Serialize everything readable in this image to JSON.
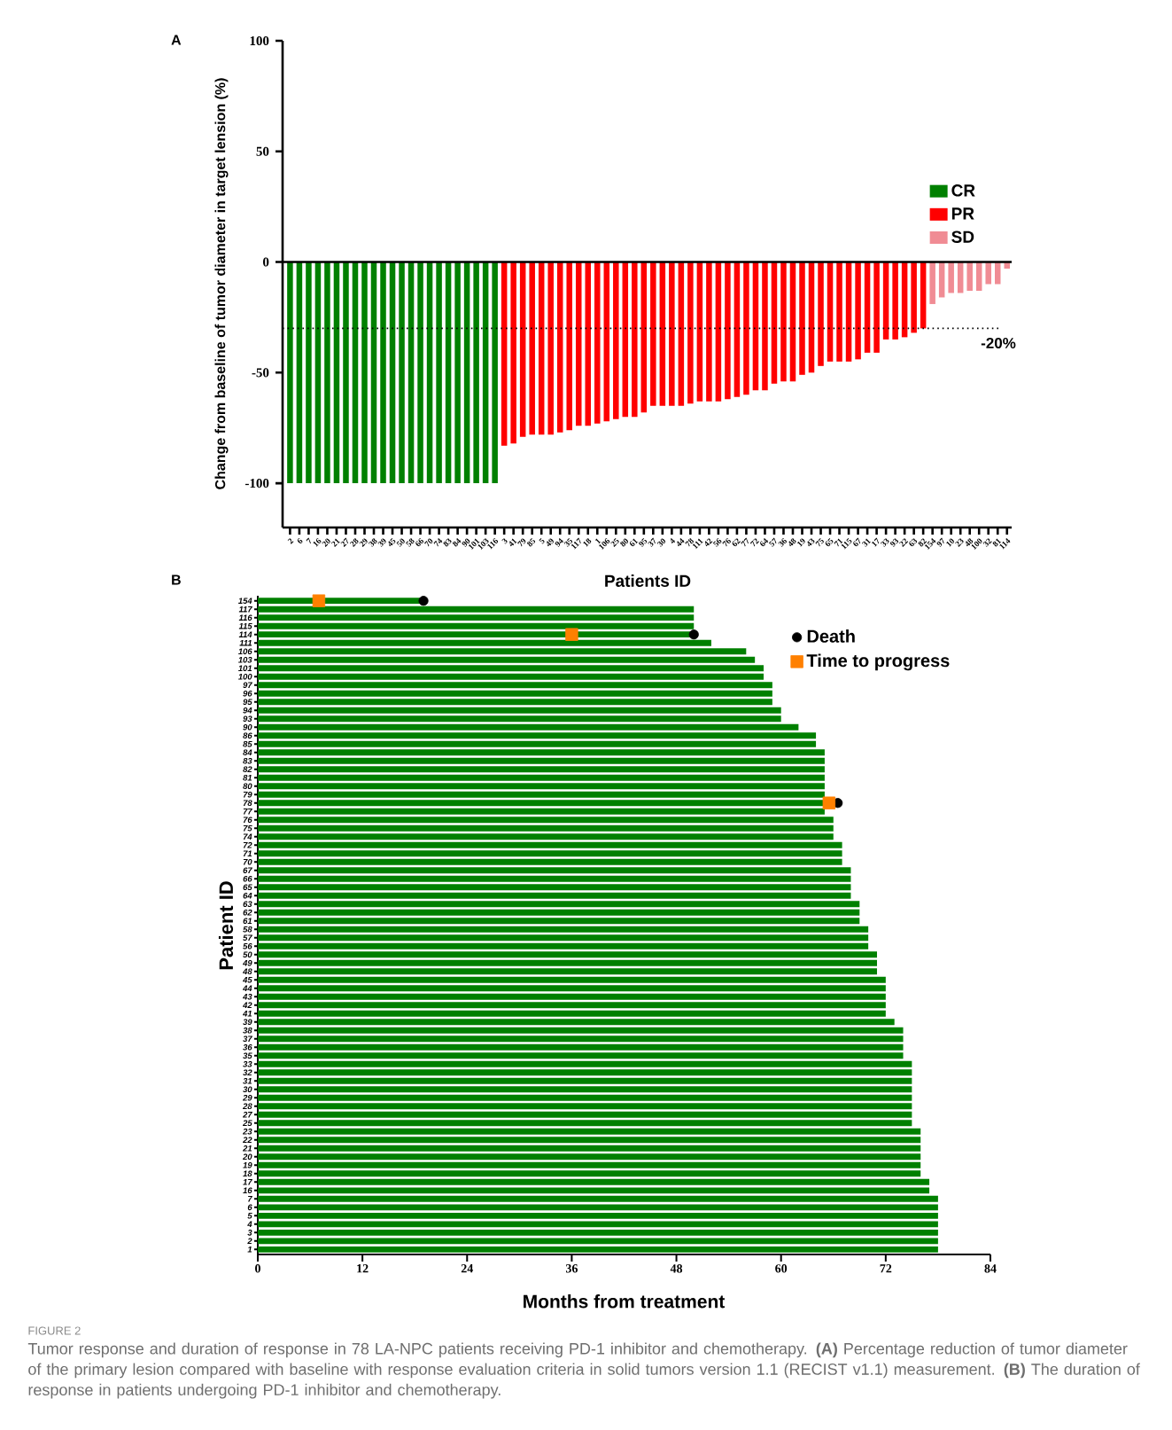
{
  "chart_data": [
    {
      "type": "bar",
      "title": "A",
      "xlabel": "Patients ID",
      "ylabel": "Change from baseline of tumor diameter in target lension (%)",
      "categories": [
        "2",
        "6",
        "7",
        "16",
        "20",
        "21",
        "27",
        "28",
        "29",
        "38",
        "39",
        "45",
        "50",
        "58",
        "66",
        "70",
        "74",
        "83",
        "84",
        "90",
        "101",
        "103",
        "116",
        "3",
        "41",
        "79",
        "85",
        "5",
        "49",
        "94",
        "35",
        "117",
        "18",
        "1",
        "106",
        "25",
        "80",
        "61",
        "95",
        "37",
        "30",
        "4",
        "44",
        "78",
        "111",
        "42",
        "56",
        "76",
        "62",
        "77",
        "72",
        "64",
        "57",
        "36",
        "48",
        "19",
        "43",
        "75",
        "65",
        "71",
        "115",
        "67",
        "31",
        "17",
        "33",
        "93",
        "22",
        "63",
        "82",
        "154",
        "97",
        "10",
        "23",
        "48",
        "100",
        "32",
        "81",
        "114"
      ],
      "series": [
        {
          "name": "CR",
          "color": "#008000",
          "values": [
            -100,
            -100,
            -100,
            -100,
            -100,
            -100,
            -100,
            -100,
            -100,
            -100,
            -100,
            -100,
            -100,
            -100,
            -100,
            -100,
            -100,
            -100,
            -100,
            -100,
            -100,
            -100,
            -100,
            null,
            null,
            null,
            null,
            null,
            null,
            null,
            null,
            null,
            null,
            null,
            null,
            null,
            null,
            null,
            null,
            null,
            null,
            null,
            null,
            null,
            null,
            null,
            null,
            null,
            null,
            null,
            null,
            null,
            null,
            null,
            null,
            null,
            null,
            null,
            null,
            null,
            null,
            null,
            null,
            null,
            null,
            null,
            null,
            null,
            null,
            null,
            null,
            null,
            null,
            null,
            null,
            null,
            null,
            null
          ]
        },
        {
          "name": "PR",
          "color": "#ff0000",
          "values": [
            null,
            null,
            null,
            null,
            null,
            null,
            null,
            null,
            null,
            null,
            null,
            null,
            null,
            null,
            null,
            null,
            null,
            null,
            null,
            null,
            null,
            null,
            null,
            -83,
            -82,
            -79,
            -78,
            -78,
            -78,
            -77,
            -76,
            -74,
            -74,
            -73,
            -72,
            -71,
            -70,
            -70,
            -68,
            -65,
            -65,
            -65,
            -65,
            -64,
            -63,
            -63,
            -63,
            -62,
            -61,
            -60,
            -58,
            -58,
            -55,
            -54,
            -54,
            -51,
            -50,
            -47,
            -45,
            -45,
            -45,
            -44,
            -41,
            -41,
            -35,
            -35,
            -34,
            -32,
            -30,
            null,
            null,
            null,
            null,
            null,
            null,
            null,
            null,
            null
          ]
        },
        {
          "name": "SD",
          "color": "#f08c94",
          "values": [
            null,
            null,
            null,
            null,
            null,
            null,
            null,
            null,
            null,
            null,
            null,
            null,
            null,
            null,
            null,
            null,
            null,
            null,
            null,
            null,
            null,
            null,
            null,
            null,
            null,
            null,
            null,
            null,
            null,
            null,
            null,
            null,
            null,
            null,
            null,
            null,
            null,
            null,
            null,
            null,
            null,
            null,
            null,
            null,
            null,
            null,
            null,
            null,
            null,
            null,
            null,
            null,
            null,
            null,
            null,
            null,
            null,
            null,
            null,
            null,
            null,
            null,
            null,
            null,
            null,
            null,
            null,
            null,
            null,
            -19,
            -16,
            -14,
            -14,
            -13,
            -13,
            -10,
            -10,
            -3
          ]
        }
      ],
      "ylim": [
        -120,
        100
      ],
      "yticks": [
        -100,
        -50,
        0,
        50,
        100
      ],
      "legend": "top right",
      "ref_lines": [
        {
          "axis": "y",
          "value": 0,
          "color": "#000000",
          "line_style": "solid"
        },
        {
          "axis": "y",
          "value": -30,
          "color": "#000000",
          "line_style": "dotted"
        }
      ],
      "annotations": [
        "-20%"
      ]
    },
    {
      "type": "bar",
      "orientation": "horizontal",
      "title": "B",
      "xlabel": "Months from treatment",
      "ylabel": "Patient ID",
      "categories": [
        "154",
        "117",
        "116",
        "115",
        "114",
        "111",
        "106",
        "103",
        "101",
        "100",
        "97",
        "96",
        "95",
        "94",
        "93",
        "90",
        "86",
        "85",
        "84",
        "83",
        "82",
        "81",
        "80",
        "79",
        "78",
        "77",
        "76",
        "75",
        "74",
        "72",
        "71",
        "70",
        "67",
        "66",
        "65",
        "64",
        "63",
        "62",
        "61",
        "58",
        "57",
        "56",
        "50",
        "49",
        "48",
        "45",
        "44",
        "43",
        "42",
        "41",
        "39",
        "38",
        "37",
        "36",
        "35",
        "33",
        "32",
        "31",
        "30",
        "29",
        "28",
        "27",
        "25",
        "23",
        "22",
        "21",
        "20",
        "19",
        "18",
        "17",
        "16",
        "7",
        "6",
        "5",
        "4",
        "3",
        "2",
        "1"
      ],
      "series": [
        {
          "color": "#008000",
          "values": [
            19,
            50,
            50,
            50,
            50,
            52,
            56,
            57,
            58,
            58,
            59,
            59,
            59,
            60,
            60,
            62,
            64,
            64,
            65,
            65,
            65,
            65,
            65,
            65,
            65,
            65,
            66,
            66,
            66,
            67,
            67,
            67,
            68,
            68,
            68,
            68,
            69,
            69,
            69,
            70,
            70,
            70,
            71,
            71,
            71,
            72,
            72,
            72,
            72,
            72,
            73,
            74,
            74,
            74,
            74,
            75,
            75,
            75,
            75,
            75,
            75,
            75,
            75,
            76,
            76,
            76,
            76,
            76,
            76,
            77,
            77,
            78,
            78,
            78,
            78,
            78,
            78,
            78
          ]
        },
        {
          "name": "Death",
          "type": "scatter",
          "marker": "circle",
          "color": "#000000",
          "x": [
            "154",
            "114",
            "78"
          ],
          "values": [
            19,
            50,
            66.5
          ]
        },
        {
          "name": "Time to progress",
          "type": "scatter",
          "marker": "square",
          "color": "#ff8000",
          "x": [
            "154",
            "114",
            "78"
          ],
          "values": [
            7,
            36,
            65.5
          ]
        }
      ],
      "xlim": [
        0,
        84
      ],
      "xticks": [
        0,
        12,
        24,
        36,
        48,
        60,
        72,
        84
      ],
      "legend": "top right",
      "annotations": [
        "FIGURE 2",
        "Tumor response and duration of response in 78 LA-NPC patients receiving PD-1 inhibitor and chemotherapy. **(A)** Percentage reduction of tumor diameter of the primary lesion compared with baseline with response evaluation criteria in solid tumors version 1.1 (RECIST v1.1) measurement. **(B)** The duration of response in patients undergoing PD-1 inhibitor and chemotherapy."
      ]
    }
  ]
}
